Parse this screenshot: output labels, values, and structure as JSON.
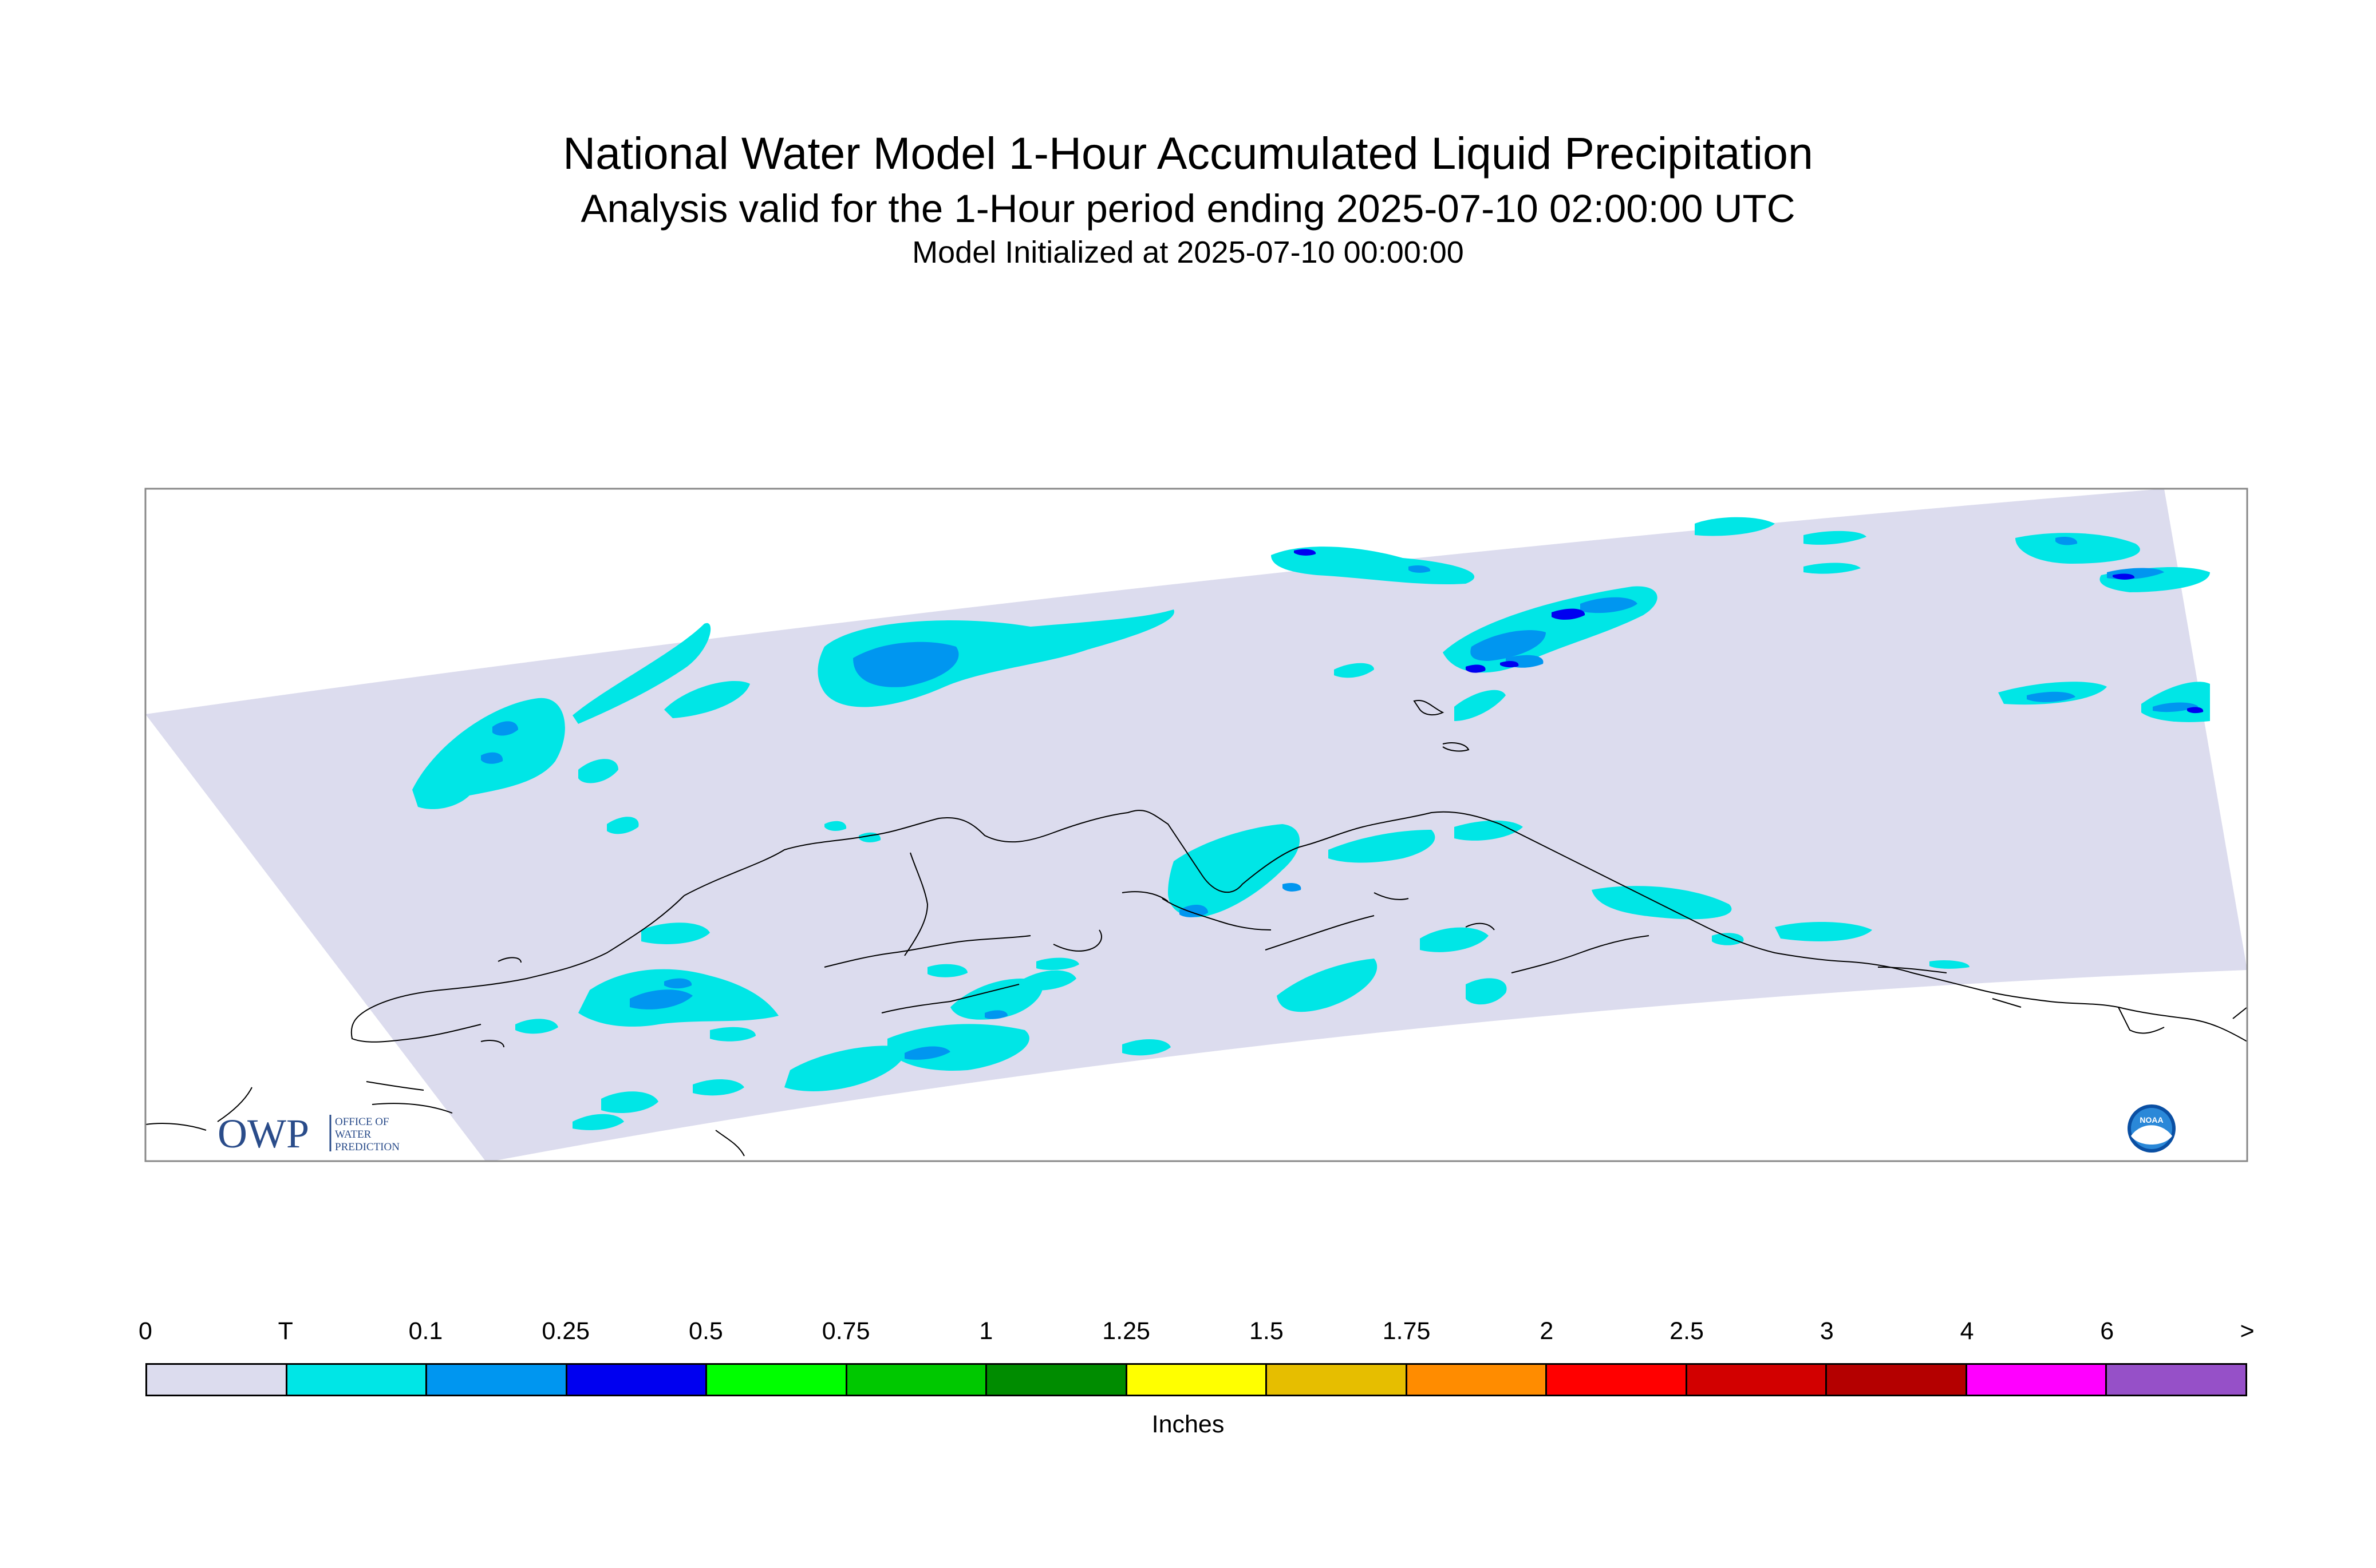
{
  "title": "National Water Model 1-Hour Accumulated Liquid Precipitation",
  "subtitle": "Analysis valid for the 1-Hour period ending 2025-07-10 02:00:00 UTC",
  "initialized": "Model Initialized at 2025-07-10 00:00:00",
  "logos": {
    "owp_mark": "OWP",
    "owp_text_lines": [
      "OFFICE OF",
      "WATER",
      "PREDICTION"
    ],
    "noaa_mark": "NOAA"
  },
  "colorbar": {
    "units_label": "Inches",
    "tick_labels": [
      "0",
      "T",
      "0.1",
      "0.25",
      "0.5",
      "0.75",
      "1",
      "1.25",
      "1.5",
      "1.75",
      "2",
      "2.5",
      "3",
      "4",
      "6",
      ">"
    ],
    "colors": [
      "#dcdcee",
      "#00e6e6",
      "#0096f0",
      "#0000f0",
      "#00ff00",
      "#00c800",
      "#008c00",
      "#ffff00",
      "#e6be00",
      "#ff8c00",
      "#ff0000",
      "#d20000",
      "#b40000",
      "#ff00ff",
      "#9650c8"
    ]
  },
  "map_colors": {
    "domain": "#dcdcee",
    "trace": "#00e6e6",
    "p01": "#0096f0",
    "p025": "#0000f0",
    "coast": "#000000",
    "frame": "#888888"
  }
}
